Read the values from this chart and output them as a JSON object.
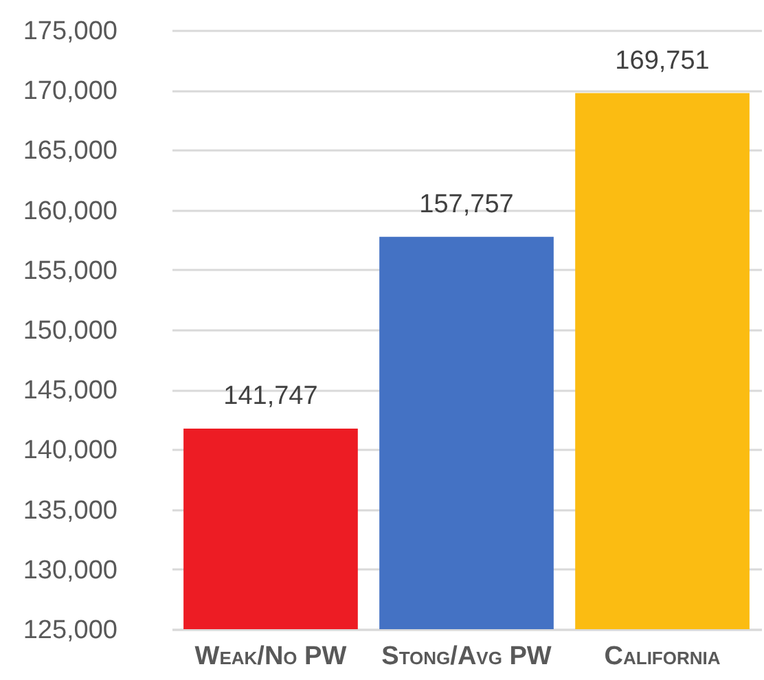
{
  "chart_data": {
    "type": "bar",
    "categories": [
      "Weak/No PW",
      "Stong/Avg PW",
      "California"
    ],
    "values": [
      141747,
      157757,
      169751
    ],
    "value_labels": [
      "141,747",
      "157,757",
      "169,751"
    ],
    "colors": [
      "#ed1c24",
      "#4472c4",
      "#fbbc12"
    ],
    "ylim": [
      125000,
      175000
    ],
    "yticks": [
      {
        "value": 125000,
        "label": "125,000"
      },
      {
        "value": 130000,
        "label": "130,000"
      },
      {
        "value": 135000,
        "label": "135,000"
      },
      {
        "value": 140000,
        "label": "140,000"
      },
      {
        "value": 145000,
        "label": "145,000"
      },
      {
        "value": 150000,
        "label": "150,000"
      },
      {
        "value": 155000,
        "label": "155,000"
      },
      {
        "value": 160000,
        "label": "160,000"
      },
      {
        "value": 165000,
        "label": "165,000"
      },
      {
        "value": 170000,
        "label": "170,000"
      },
      {
        "value": 175000,
        "label": "175,000"
      }
    ],
    "grid": "y"
  }
}
